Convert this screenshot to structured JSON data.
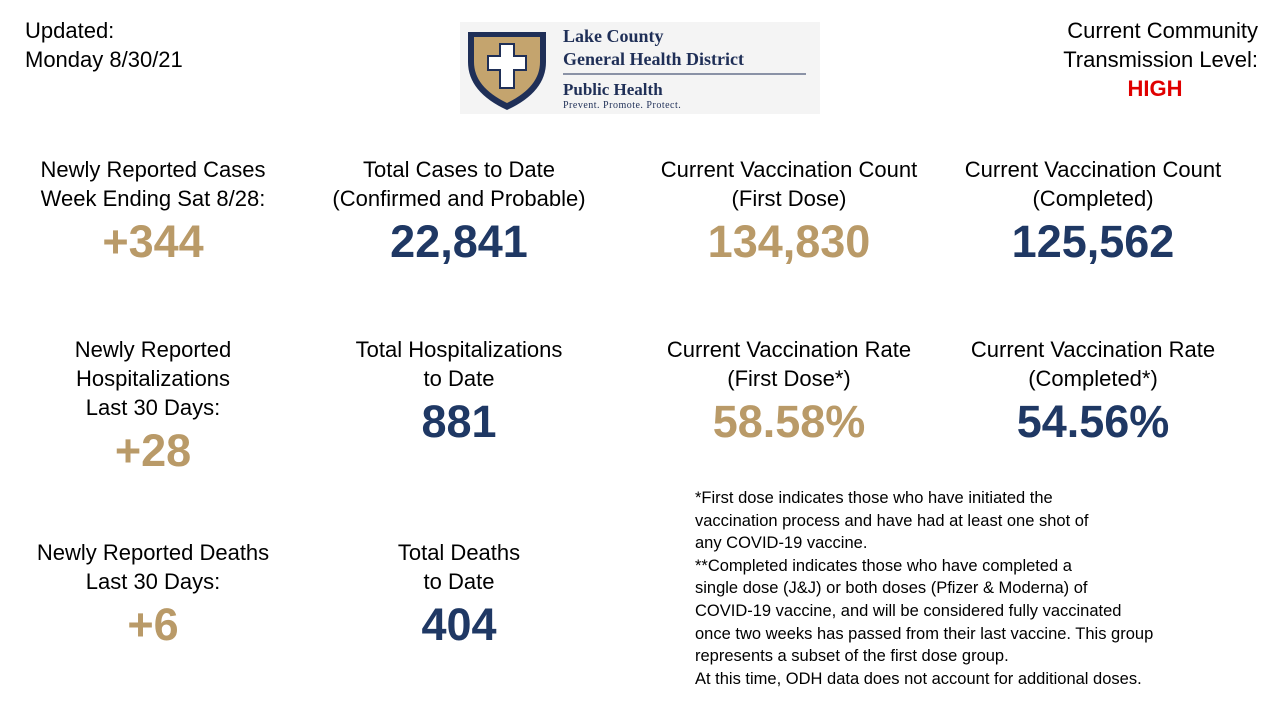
{
  "header": {
    "updated_label": "Updated:",
    "updated_date": "Monday 8/30/21",
    "logo": {
      "name_line1": "Lake County",
      "name_line2": "General Health District",
      "brand": "Public Health",
      "tagline": "Prevent. Promote. Protect."
    },
    "transmission_label_lines": [
      "Current Community",
      "Transmission Level:"
    ],
    "transmission_level": "HIGH"
  },
  "stats": [
    {
      "label_lines": [
        "Newly Reported Cases",
        "Week Ending Sat 8/28:"
      ],
      "value": "+344"
    },
    {
      "label_lines": [
        "Total Cases to Date",
        "(Confirmed and Probable)"
      ],
      "value": "22,841"
    },
    {
      "label_lines": [
        "Current Vaccination Count",
        "(First Dose)"
      ],
      "value": "134,830"
    },
    {
      "label_lines": [
        "Current Vaccination Count",
        "(Completed)"
      ],
      "value": "125,562"
    },
    {
      "label_lines": [
        "Newly Reported",
        "Hospitalizations",
        "Last 30 Days:"
      ],
      "value": "+28"
    },
    {
      "label_lines": [
        "Total Hospitalizations",
        "to Date"
      ],
      "value": "881"
    },
    {
      "label_lines": [
        "Current Vaccination Rate",
        "(First Dose*)"
      ],
      "value": "58.58%"
    },
    {
      "label_lines": [
        "Current Vaccination Rate",
        "(Completed*)"
      ],
      "value": "54.56%"
    },
    {
      "label_lines": [
        "Newly Reported Deaths",
        "Last 30 Days:"
      ],
      "value": "+6"
    },
    {
      "label_lines": [
        "Total Deaths",
        "to Date"
      ],
      "value": "404"
    }
  ],
  "footnote_lines": [
    "*First dose indicates those who have initiated the",
    "vaccination process and have had at least one shot of",
    "any COVID-19 vaccine.",
    "**Completed indicates those who have completed a",
    "single dose (J&J) or both doses (Pfizer & Moderna) of",
    "COVID-19 vaccine, and will be considered fully vaccinated",
    "once two weeks has passed from their last vaccine. This group",
    "represents a subset of the first dose group.",
    "At this time, ODH data does not account for additional doses."
  ]
}
